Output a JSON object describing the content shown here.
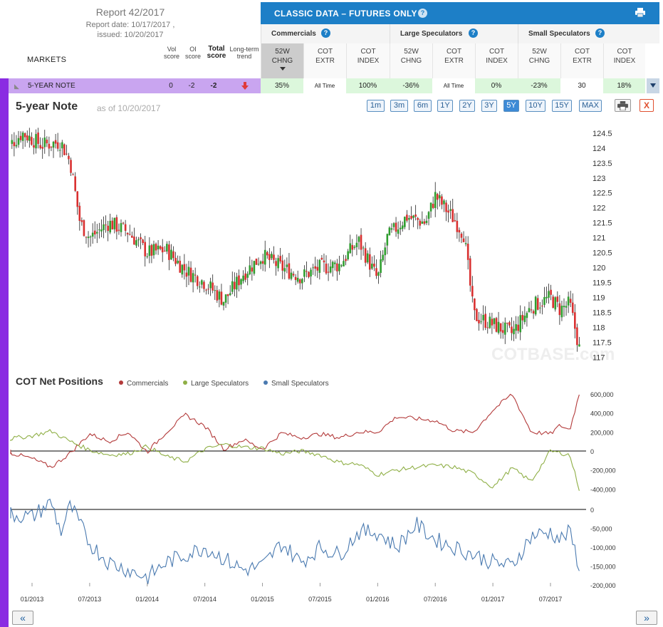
{
  "report": {
    "title": "Report 42/2017",
    "date_line": "Report date: 10/17/2017 ,",
    "issued_line": "issued: 10/20/2017"
  },
  "markets_label": "MARKETS",
  "score_headers": [
    "Vol score",
    "OI score",
    "Total score",
    "Long-term trend"
  ],
  "classic_title": "CLASSIC DATA – FUTURES ONLY",
  "help_glyph": "?",
  "groups": [
    "Commercials",
    "Large Speculators",
    "Small Speculators"
  ],
  "column_headers": [
    [
      "52W",
      "CHNG"
    ],
    [
      "COT",
      "EXTR"
    ],
    [
      "COT",
      "INDEX"
    ],
    [
      "52W",
      "CHNG"
    ],
    [
      "COT",
      "EXTR"
    ],
    [
      "COT",
      "INDEX"
    ],
    [
      "52W",
      "CHNG"
    ],
    [
      "COT",
      "EXTR"
    ],
    [
      "COT",
      "INDEX"
    ]
  ],
  "market_row": {
    "name": "5-YEAR NOTE",
    "vol_score": "0",
    "oi_score": "-2",
    "total_score": "-2",
    "trend": "down",
    "cells": [
      "35%",
      "All Time",
      "100%",
      "-36%",
      "All Time",
      "0%",
      "-23%",
      "30",
      "18%"
    ]
  },
  "chart_header": {
    "title": "5-year Note",
    "as_of": "as of 10/20/2017"
  },
  "range_buttons": [
    "1m",
    "3m",
    "6m",
    "1Y",
    "2Y",
    "3Y",
    "5Y",
    "10Y",
    "15Y",
    "MAX"
  ],
  "active_range": "5Y",
  "close_glyph": "X",
  "watermark": "COTBASE.com",
  "cot_title": "COT Net Positions",
  "colors": {
    "commercials": "#b33a3a",
    "large_speculators": "#8faf46",
    "small_speculators": "#4a7ab0",
    "candle_up": "#2f9e2f",
    "candle_down": "#d93030",
    "accent": "#1d7fc7",
    "sidebar": "#8a2be2"
  },
  "nav": {
    "prev": "«",
    "next": "»"
  },
  "chart_data": [
    {
      "type": "line",
      "subtype": "candlestick",
      "title": "5-year Note",
      "x_ticks": [
        "01/2013",
        "07/2013",
        "01/2014",
        "07/2014",
        "01/2015",
        "07/2015",
        "01/2016",
        "07/2016",
        "01/2017",
        "07/2017"
      ],
      "y_ticks": [
        117,
        117.5,
        118,
        118.5,
        119,
        119.5,
        120,
        120.5,
        121,
        121.5,
        122,
        122.5,
        123,
        123.5,
        124,
        124.5
      ],
      "ylim": [
        116.8,
        124.9
      ],
      "x_range": [
        "2012-10",
        "2017-10"
      ],
      "series": [
        {
          "name": "Price",
          "x": [
            "2012-10",
            "2012-12",
            "2013-02",
            "2013-04",
            "2013-05",
            "2013-06",
            "2013-07",
            "2013-09",
            "2013-11",
            "2014-01",
            "2014-03",
            "2014-05",
            "2014-07",
            "2014-09",
            "2014-11",
            "2015-01",
            "2015-03",
            "2015-05",
            "2015-07",
            "2015-09",
            "2015-11",
            "2016-01",
            "2016-02",
            "2016-04",
            "2016-06",
            "2016-07",
            "2016-09",
            "2016-10",
            "2016-11",
            "2017-01",
            "2017-03",
            "2017-05",
            "2017-07",
            "2017-08",
            "2017-09",
            "2017-10"
          ],
          "values": [
            123.9,
            124.5,
            124.1,
            124.2,
            123.5,
            121.5,
            121,
            121.5,
            121.2,
            120.5,
            120.6,
            119.9,
            119.5,
            118.9,
            119.8,
            120.4,
            120,
            119.7,
            120,
            120.1,
            120.9,
            119.6,
            121,
            121.7,
            121.5,
            122.4,
            121.6,
            121.1,
            118.4,
            118.1,
            117.8,
            118.7,
            119,
            118.6,
            118.8,
            117.3
          ]
        }
      ]
    },
    {
      "type": "line",
      "title": "COT Net Positions",
      "x_ticks": [
        "01/2013",
        "07/2013",
        "01/2014",
        "07/2014",
        "01/2015",
        "07/2015",
        "01/2016",
        "07/2016",
        "01/2017",
        "07/2017"
      ],
      "y_ticks": [
        -400000,
        -200000,
        0,
        200000,
        400000,
        600000
      ],
      "ylim": [
        -450000,
        650000
      ],
      "series": [
        {
          "name": "Commercials",
          "x": [
            "2012-10",
            "2013-01",
            "2013-03",
            "2013-05",
            "2013-07",
            "2013-09",
            "2013-11",
            "2014-01",
            "2014-03",
            "2014-05",
            "2014-07",
            "2014-09",
            "2014-11",
            "2015-01",
            "2015-03",
            "2015-05",
            "2015-07",
            "2015-09",
            "2015-11",
            "2016-01",
            "2016-03",
            "2016-05",
            "2016-07",
            "2016-09",
            "2016-11",
            "2017-01",
            "2017-03",
            "2017-05",
            "2017-07",
            "2017-08",
            "2017-09",
            "2017-10"
          ],
          "values": [
            0,
            -80000,
            -170000,
            -20000,
            180000,
            100000,
            200000,
            -10000,
            200000,
            380000,
            260000,
            20000,
            120000,
            20000,
            190000,
            140000,
            180000,
            140000,
            200000,
            200000,
            360000,
            340000,
            320000,
            210000,
            200000,
            430000,
            600000,
            200000,
            180000,
            270000,
            220000,
            600000
          ]
        },
        {
          "name": "Large Speculators",
          "x": [
            "2012-10",
            "2013-01",
            "2013-03",
            "2013-05",
            "2013-07",
            "2013-09",
            "2013-11",
            "2014-01",
            "2014-03",
            "2014-05",
            "2014-07",
            "2014-09",
            "2014-11",
            "2015-01",
            "2015-03",
            "2015-05",
            "2015-07",
            "2015-09",
            "2015-11",
            "2016-01",
            "2016-03",
            "2016-05",
            "2016-07",
            "2016-09",
            "2016-11",
            "2017-01",
            "2017-03",
            "2017-05",
            "2017-07",
            "2017-08",
            "2017-09",
            "2017-10"
          ],
          "values": [
            120000,
            160000,
            210000,
            100000,
            10000,
            -40000,
            -30000,
            50000,
            -60000,
            -110000,
            20000,
            70000,
            40000,
            30000,
            -30000,
            0,
            -40000,
            -120000,
            -140000,
            -250000,
            -200000,
            -170000,
            -150000,
            -170000,
            -240000,
            -380000,
            -180000,
            -320000,
            0,
            -20000,
            -40000,
            -400000
          ]
        },
        {
          "name": "Small Speculators",
          "x": [
            "2012-10",
            "2013-01",
            "2013-03",
            "2013-04",
            "2013-05",
            "2013-07",
            "2013-09",
            "2013-11",
            "2014-01",
            "2014-03",
            "2014-05",
            "2014-07",
            "2014-09",
            "2014-11",
            "2015-01",
            "2015-03",
            "2015-05",
            "2015-07",
            "2015-09",
            "2015-11",
            "2016-01",
            "2016-03",
            "2016-05",
            "2016-07",
            "2016-09",
            "2016-11",
            "2017-01",
            "2017-03",
            "2017-05",
            "2017-07",
            "2017-08",
            "2017-09",
            "2017-10"
          ],
          "values": [
            -10000,
            -20000,
            20000,
            -60000,
            10000,
            -90000,
            -140000,
            -160000,
            -180000,
            -140000,
            -120000,
            -100000,
            -130000,
            -160000,
            -150000,
            -90000,
            -140000,
            -100000,
            -120000,
            -60000,
            -60000,
            -100000,
            -40000,
            -80000,
            -100000,
            -120000,
            -140000,
            -150000,
            -70000,
            -60000,
            -80000,
            -60000,
            -150000
          ]
        }
      ]
    }
  ]
}
